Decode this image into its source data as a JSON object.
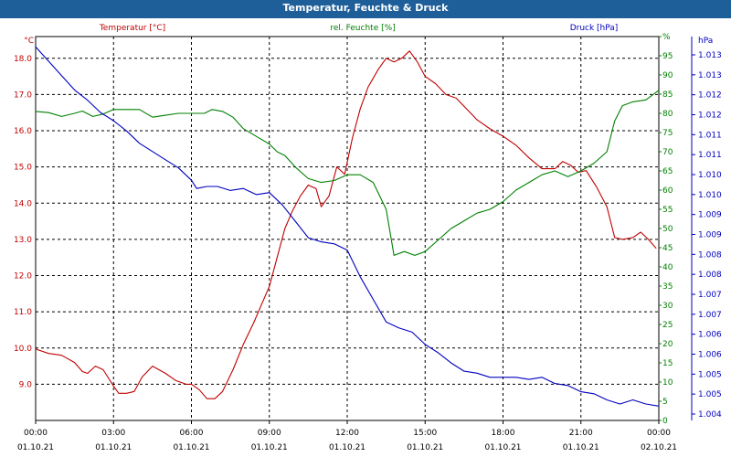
{
  "window": {
    "title": "Temperatur, Feuchte & Druck"
  },
  "chart_data": {
    "type": "line",
    "title": "Temperatur, Feuchte & Druck",
    "x": {
      "range_hours": [
        0,
        24
      ],
      "ticks": [
        {
          "time": "00:00",
          "date": "01.10.21"
        },
        {
          "time": "03:00",
          "date": "01.10.21"
        },
        {
          "time": "06:00",
          "date": "01.10.21"
        },
        {
          "time": "09:00",
          "date": "01.10.21"
        },
        {
          "time": "12:00",
          "date": "01.10.21"
        },
        {
          "time": "15:00",
          "date": "01.10.21"
        },
        {
          "time": "18:00",
          "date": "01.10.21"
        },
        {
          "time": "21:00",
          "date": "01.10.21"
        },
        {
          "time": "00:00",
          "date": "02.10.21"
        }
      ]
    },
    "axes": {
      "temperature": {
        "label": "Temperatur [°C]",
        "unit": "°C",
        "range": [
          8.0,
          18.6
        ],
        "color": "#c00000",
        "ticks": [
          "9.0",
          "10.0",
          "11.0",
          "12.0",
          "13.0",
          "14.0",
          "15.0",
          "16.0",
          "17.0",
          "18.0"
        ]
      },
      "humidity": {
        "label": "rel. Feuchte [%]",
        "unit": "%",
        "range": [
          0,
          100
        ],
        "color": "#008000",
        "ticks": [
          "0",
          "5",
          "10",
          "15",
          "20",
          "25",
          "30",
          "35",
          "40",
          "45",
          "50",
          "55",
          "60",
          "65",
          "70",
          "75",
          "80",
          "85",
          "90",
          "95",
          "%"
        ]
      },
      "pressure": {
        "label": "Druck [hPa]",
        "unit": "hPa",
        "range": [
          1004.0,
          1013.35
        ],
        "color": "#0000c0",
        "ticks": [
          "1.004",
          "1.005",
          "1.005",
          "1.006",
          "1.006",
          "1.007",
          "1.007",
          "1.008",
          "1.008",
          "1.009",
          "1.009",
          "1.010",
          "1.010",
          "1.011",
          "1.011",
          "1.012",
          "1.012",
          "1.013",
          "1.013"
        ]
      }
    },
    "series": [
      {
        "name": "Temperatur",
        "axis": "temperature",
        "color": "#c00000",
        "points": [
          [
            0,
            9.97
          ],
          [
            0.5,
            9.85
          ],
          [
            1,
            9.8
          ],
          [
            1.5,
            9.6
          ],
          [
            1.8,
            9.35
          ],
          [
            2,
            9.3
          ],
          [
            2.3,
            9.5
          ],
          [
            2.6,
            9.4
          ],
          [
            3,
            8.95
          ],
          [
            3.2,
            8.75
          ],
          [
            3.5,
            8.75
          ],
          [
            3.8,
            8.8
          ],
          [
            4.1,
            9.2
          ],
          [
            4.5,
            9.5
          ],
          [
            5,
            9.3
          ],
          [
            5.4,
            9.1
          ],
          [
            5.8,
            9.0
          ],
          [
            6,
            9.0
          ],
          [
            6.3,
            8.85
          ],
          [
            6.6,
            8.6
          ],
          [
            6.9,
            8.6
          ],
          [
            7.2,
            8.8
          ],
          [
            7.6,
            9.4
          ],
          [
            8,
            10.1
          ],
          [
            8.4,
            10.7
          ],
          [
            8.7,
            11.2
          ],
          [
            9,
            11.7
          ],
          [
            9.3,
            12.5
          ],
          [
            9.6,
            13.3
          ],
          [
            9.9,
            13.8
          ],
          [
            10.2,
            14.2
          ],
          [
            10.5,
            14.5
          ],
          [
            10.8,
            14.4
          ],
          [
            11,
            13.9
          ],
          [
            11.3,
            14.2
          ],
          [
            11.6,
            15.0
          ],
          [
            11.9,
            14.8
          ],
          [
            12.2,
            15.8
          ],
          [
            12.5,
            16.6
          ],
          [
            12.8,
            17.2
          ],
          [
            13.2,
            17.7
          ],
          [
            13.5,
            18.0
          ],
          [
            13.8,
            17.9
          ],
          [
            14.1,
            18.0
          ],
          [
            14.4,
            18.2
          ],
          [
            14.7,
            17.9
          ],
          [
            15,
            17.5
          ],
          [
            15.4,
            17.3
          ],
          [
            15.8,
            17.0
          ],
          [
            16.2,
            16.9
          ],
          [
            16.6,
            16.6
          ],
          [
            17,
            16.3
          ],
          [
            17.5,
            16.05
          ],
          [
            18,
            15.85
          ],
          [
            18.5,
            15.6
          ],
          [
            19,
            15.25
          ],
          [
            19.5,
            14.95
          ],
          [
            20,
            14.95
          ],
          [
            20.3,
            15.15
          ],
          [
            20.6,
            15.05
          ],
          [
            20.9,
            14.85
          ],
          [
            21.2,
            14.9
          ],
          [
            21.6,
            14.45
          ],
          [
            22,
            13.9
          ],
          [
            22.3,
            13.05
          ],
          [
            22.6,
            13.0
          ],
          [
            23,
            13.05
          ],
          [
            23.3,
            13.2
          ],
          [
            23.6,
            13.0
          ],
          [
            23.9,
            12.75
          ]
        ]
      },
      {
        "name": "rel. Feuchte",
        "axis": "humidity",
        "color": "#008000",
        "points": [
          [
            0,
            80.5
          ],
          [
            0.5,
            80.2
          ],
          [
            1,
            79.2
          ],
          [
            1.5,
            80.0
          ],
          [
            1.8,
            80.6
          ],
          [
            2.2,
            79.2
          ],
          [
            2.6,
            79.8
          ],
          [
            3,
            81.0
          ],
          [
            3.5,
            81.0
          ],
          [
            4,
            81.0
          ],
          [
            4.5,
            79.0
          ],
          [
            5,
            79.5
          ],
          [
            5.5,
            80.0
          ],
          [
            6,
            80.0
          ],
          [
            6.5,
            80.0
          ],
          [
            6.8,
            81.0
          ],
          [
            7.2,
            80.5
          ],
          [
            7.6,
            79.0
          ],
          [
            8,
            76.0
          ],
          [
            8.5,
            74.0
          ],
          [
            9,
            72.0
          ],
          [
            9.3,
            70.0
          ],
          [
            9.6,
            69.0
          ],
          [
            10,
            66.0
          ],
          [
            10.5,
            63.0
          ],
          [
            11,
            62.0
          ],
          [
            11.5,
            62.5
          ],
          [
            12,
            64.0
          ],
          [
            12.5,
            64.0
          ],
          [
            13,
            62.0
          ],
          [
            13.5,
            55.0
          ],
          [
            13.8,
            43.0
          ],
          [
            14.2,
            44.0
          ],
          [
            14.6,
            43.0
          ],
          [
            15,
            44.0
          ],
          [
            15.5,
            47.0
          ],
          [
            16,
            50.0
          ],
          [
            16.5,
            52.0
          ],
          [
            17,
            54.0
          ],
          [
            17.5,
            55.0
          ],
          [
            18,
            57.0
          ],
          [
            18.5,
            60.0
          ],
          [
            19,
            62.0
          ],
          [
            19.5,
            64.0
          ],
          [
            20,
            65.0
          ],
          [
            20.5,
            63.5
          ],
          [
            21,
            65.0
          ],
          [
            21.5,
            67.0
          ],
          [
            22,
            70.0
          ],
          [
            22.3,
            78.0
          ],
          [
            22.6,
            82.0
          ],
          [
            23,
            83.0
          ],
          [
            23.5,
            83.5
          ],
          [
            24,
            86.0
          ]
        ]
      },
      {
        "name": "Druck",
        "axis": "pressure",
        "color": "#0000c0",
        "points": [
          [
            0,
            1013.1
          ],
          [
            0.5,
            1012.75
          ],
          [
            1,
            1012.4
          ],
          [
            1.5,
            1012.05
          ],
          [
            2,
            1011.8
          ],
          [
            2.5,
            1011.5
          ],
          [
            3,
            1011.3
          ],
          [
            3.5,
            1011.05
          ],
          [
            4,
            1010.75
          ],
          [
            4.5,
            1010.55
          ],
          [
            5,
            1010.35
          ],
          [
            5.5,
            1010.15
          ],
          [
            6,
            1009.85
          ],
          [
            6.2,
            1009.65
          ],
          [
            6.6,
            1009.7
          ],
          [
            7,
            1009.7
          ],
          [
            7.5,
            1009.6
          ],
          [
            8,
            1009.65
          ],
          [
            8.5,
            1009.5
          ],
          [
            9,
            1009.55
          ],
          [
            9.5,
            1009.25
          ],
          [
            10,
            1008.85
          ],
          [
            10.5,
            1008.45
          ],
          [
            11,
            1008.35
          ],
          [
            11.5,
            1008.3
          ],
          [
            12,
            1008.15
          ],
          [
            12.5,
            1007.5
          ],
          [
            13,
            1006.95
          ],
          [
            13.5,
            1006.4
          ],
          [
            14,
            1006.25
          ],
          [
            14.5,
            1006.15
          ],
          [
            15,
            1005.85
          ],
          [
            15.5,
            1005.65
          ],
          [
            16,
            1005.4
          ],
          [
            16.5,
            1005.2
          ],
          [
            17,
            1005.15
          ],
          [
            17.5,
            1005.05
          ],
          [
            18,
            1005.05
          ],
          [
            18.5,
            1005.05
          ],
          [
            19,
            1005.0
          ],
          [
            19.5,
            1005.05
          ],
          [
            20,
            1004.9
          ],
          [
            20.5,
            1004.85
          ],
          [
            21,
            1004.7
          ],
          [
            21.5,
            1004.65
          ],
          [
            22,
            1004.5
          ],
          [
            22.5,
            1004.4
          ],
          [
            23,
            1004.5
          ],
          [
            23.5,
            1004.4
          ],
          [
            24,
            1004.35
          ]
        ]
      }
    ]
  }
}
